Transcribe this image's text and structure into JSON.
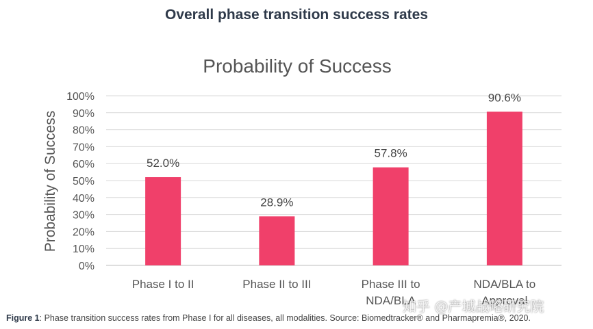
{
  "header": {
    "title": "Overall phase transition success rates"
  },
  "caption": {
    "label": "Figure 1",
    "text": ": Phase transition success rates from Phase I for all diseases, all modalities. Source: Biomedtracker® and Pharmapremia®, 2020."
  },
  "watermark": {
    "text": "知乎 @产城战略研究院"
  },
  "chart_data": {
    "type": "bar",
    "title": "Probability of Success",
    "xlabel": "",
    "ylabel": "Probability of Success",
    "categories": [
      [
        "Phase I to II"
      ],
      [
        "Phase II to III"
      ],
      [
        "Phase III to",
        "NDA/BLA"
      ],
      [
        "NDA/BLA to",
        "Approval"
      ]
    ],
    "values": [
      52.0,
      28.9,
      57.8,
      90.6
    ],
    "value_labels": [
      "52.0%",
      "28.9%",
      "57.8%",
      "90.6%"
    ],
    "yticks": [
      "0%",
      "10%",
      "20%",
      "30%",
      "40%",
      "50%",
      "60%",
      "70%",
      "80%",
      "90%",
      "100%"
    ],
    "ylim": [
      0,
      100
    ],
    "grid": true,
    "legend": "none",
    "bar_color": "#f0406a"
  }
}
